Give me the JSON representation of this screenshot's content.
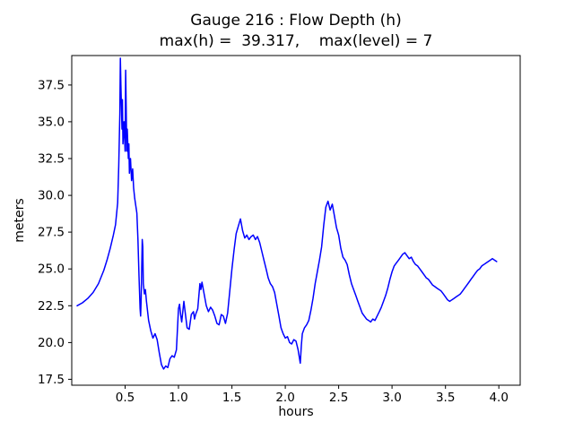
{
  "figure": {
    "kind": "matplotlib-line-figure",
    "background": "#ffffff"
  },
  "chart_data": {
    "type": "line",
    "title": "Gauge 216 : Flow Depth (h)",
    "subtitle": "max(h) =  39.317,    max(level) = 7",
    "xlabel": "hours",
    "ylabel": "meters",
    "max_h": 39.317,
    "max_level": 7,
    "line_color": "#0000ff",
    "axis_color": "#000000",
    "legend": "none",
    "grid": false,
    "xlim": [
      0.0,
      4.2
    ],
    "ylim": [
      17.1,
      39.5
    ],
    "xticks": [
      0.5,
      1.0,
      1.5,
      2.0,
      2.5,
      3.0,
      3.5,
      4.0
    ],
    "yticks": [
      17.5,
      20.0,
      22.5,
      25.0,
      27.5,
      30.0,
      32.5,
      35.0,
      37.5
    ],
    "x": [
      0.05,
      0.1,
      0.15,
      0.2,
      0.25,
      0.3,
      0.33,
      0.36,
      0.39,
      0.41,
      0.43,
      0.44,
      0.45,
      0.455,
      0.46,
      0.47,
      0.475,
      0.48,
      0.49,
      0.5,
      0.505,
      0.51,
      0.515,
      0.52,
      0.53,
      0.535,
      0.54,
      0.55,
      0.56,
      0.57,
      0.58,
      0.59,
      0.6,
      0.61,
      0.62,
      0.63,
      0.64,
      0.645,
      0.65,
      0.66,
      0.665,
      0.67,
      0.68,
      0.69,
      0.7,
      0.72,
      0.74,
      0.76,
      0.78,
      0.8,
      0.82,
      0.84,
      0.86,
      0.88,
      0.9,
      0.92,
      0.94,
      0.96,
      0.98,
      1.0,
      1.01,
      1.02,
      1.03,
      1.05,
      1.06,
      1.08,
      1.1,
      1.12,
      1.14,
      1.15,
      1.16,
      1.18,
      1.2,
      1.21,
      1.22,
      1.24,
      1.26,
      1.28,
      1.3,
      1.32,
      1.34,
      1.36,
      1.38,
      1.4,
      1.42,
      1.44,
      1.46,
      1.48,
      1.5,
      1.52,
      1.54,
      1.56,
      1.58,
      1.6,
      1.62,
      1.64,
      1.66,
      1.68,
      1.7,
      1.72,
      1.74,
      1.76,
      1.78,
      1.8,
      1.82,
      1.84,
      1.86,
      1.88,
      1.9,
      1.92,
      1.94,
      1.96,
      1.98,
      2.0,
      2.02,
      2.04,
      2.06,
      2.08,
      2.1,
      2.12,
      2.14,
      2.15,
      2.16,
      2.18,
      2.2,
      2.22,
      2.24,
      2.26,
      2.28,
      2.3,
      2.32,
      2.34,
      2.36,
      2.38,
      2.4,
      2.42,
      2.44,
      2.46,
      2.48,
      2.5,
      2.52,
      2.54,
      2.56,
      2.58,
      2.6,
      2.62,
      2.64,
      2.66,
      2.68,
      2.7,
      2.72,
      2.74,
      2.76,
      2.78,
      2.8,
      2.82,
      2.84,
      2.86,
      2.88,
      2.9,
      2.92,
      2.94,
      2.96,
      2.98,
      3.0,
      3.02,
      3.04,
      3.06,
      3.08,
      3.1,
      3.12,
      3.14,
      3.16,
      3.18,
      3.2,
      3.22,
      3.24,
      3.26,
      3.28,
      3.3,
      3.32,
      3.34,
      3.36,
      3.38,
      3.4,
      3.42,
      3.44,
      3.46,
      3.48,
      3.5,
      3.52,
      3.54,
      3.56,
      3.58,
      3.6,
      3.62,
      3.64,
      3.66,
      3.68,
      3.7,
      3.72,
      3.74,
      3.76,
      3.78,
      3.8,
      3.82,
      3.84,
      3.86,
      3.88,
      3.9,
      3.92,
      3.94,
      3.96,
      3.98
    ],
    "y": [
      22.5,
      22.7,
      23.0,
      23.4,
      24.0,
      24.9,
      25.6,
      26.4,
      27.3,
      28.0,
      29.5,
      32.0,
      35.5,
      39.317,
      37.5,
      34.5,
      36.5,
      33.5,
      35.0,
      33.0,
      38.5,
      36.0,
      33.0,
      34.5,
      32.5,
      33.5,
      31.5,
      32.5,
      31.0,
      31.8,
      30.5,
      29.8,
      29.3,
      28.8,
      27.0,
      24.5,
      22.3,
      21.8,
      23.0,
      27.0,
      26.5,
      24.0,
      23.3,
      23.6,
      22.8,
      21.5,
      20.8,
      20.3,
      20.6,
      20.2,
      19.3,
      18.5,
      18.2,
      18.4,
      18.3,
      18.9,
      19.1,
      19.0,
      19.5,
      22.3,
      22.6,
      21.9,
      21.4,
      22.8,
      22.2,
      21.0,
      20.9,
      21.9,
      22.1,
      21.6,
      21.9,
      22.3,
      24.0,
      23.6,
      24.1,
      23.3,
      22.5,
      22.1,
      22.4,
      22.2,
      21.8,
      21.3,
      21.2,
      21.9,
      21.8,
      21.3,
      22.0,
      23.5,
      25.0,
      26.3,
      27.4,
      27.9,
      28.4,
      27.6,
      27.1,
      27.3,
      27.0,
      27.2,
      27.3,
      27.0,
      27.2,
      26.8,
      26.2,
      25.6,
      25.0,
      24.4,
      24.0,
      23.8,
      23.4,
      22.6,
      21.8,
      21.0,
      20.6,
      20.3,
      20.4,
      20.0,
      19.9,
      20.2,
      20.1,
      19.5,
      18.6,
      19.8,
      20.6,
      21.0,
      21.2,
      21.5,
      22.2,
      23.0,
      24.0,
      24.8,
      25.6,
      26.5,
      28.0,
      29.2,
      29.6,
      29.0,
      29.4,
      28.6,
      27.8,
      27.3,
      26.4,
      25.8,
      25.6,
      25.3,
      24.6,
      24.0,
      23.6,
      23.2,
      22.8,
      22.4,
      22.0,
      21.8,
      21.6,
      21.5,
      21.4,
      21.6,
      21.5,
      21.8,
      22.1,
      22.4,
      22.8,
      23.2,
      23.7,
      24.3,
      24.8,
      25.2,
      25.4,
      25.6,
      25.8,
      26.0,
      26.1,
      25.9,
      25.7,
      25.8,
      25.5,
      25.3,
      25.2,
      25.0,
      24.8,
      24.6,
      24.4,
      24.3,
      24.1,
      23.9,
      23.8,
      23.7,
      23.6,
      23.5,
      23.3,
      23.1,
      22.9,
      22.8,
      22.9,
      23.0,
      23.1,
      23.2,
      23.3,
      23.5,
      23.7,
      23.9,
      24.1,
      24.3,
      24.5,
      24.7,
      24.9,
      25.0,
      25.2,
      25.3,
      25.4,
      25.5,
      25.6,
      25.7,
      25.6,
      25.5
    ]
  }
}
